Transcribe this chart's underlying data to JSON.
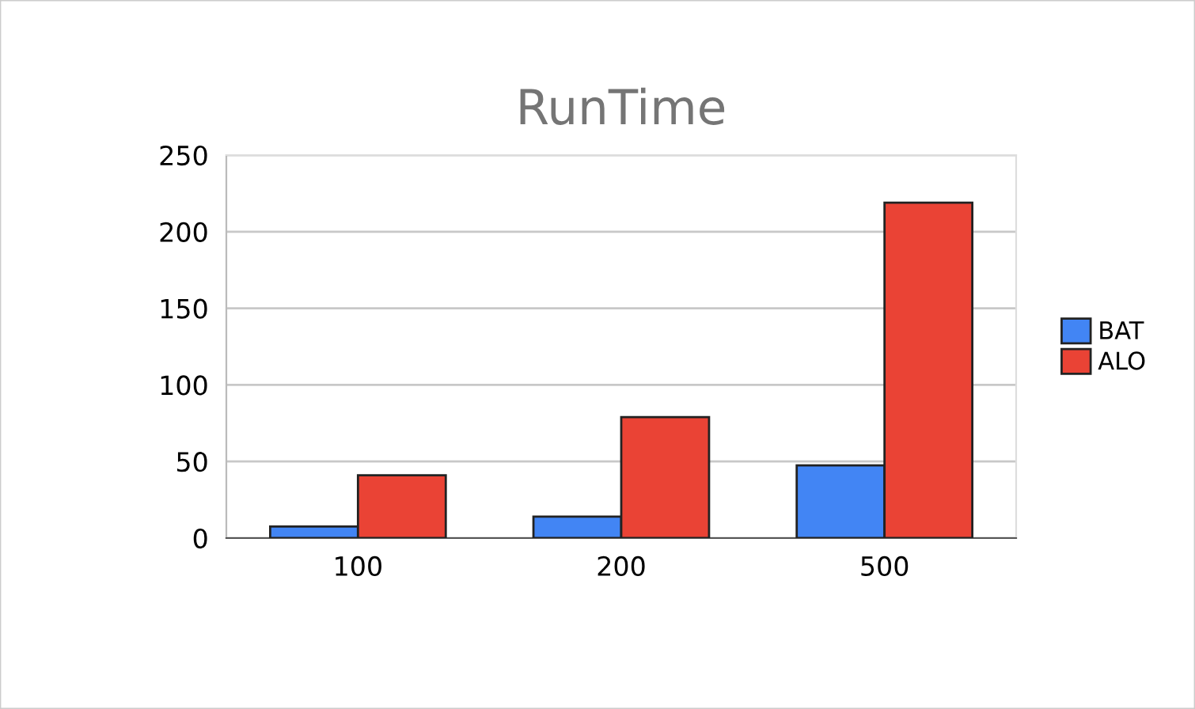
{
  "chart_data": {
    "type": "bar",
    "title": "RunTime",
    "categories": [
      "100",
      "200",
      "500"
    ],
    "series": [
      {
        "name": "BAT",
        "color": "#4285f4",
        "values": [
          7.5,
          14,
          47.5
        ]
      },
      {
        "name": "ALO",
        "color": "#ea4335",
        "values": [
          41,
          79,
          219
        ]
      }
    ],
    "ylim": [
      0,
      250
    ],
    "yticks": [
      0,
      50,
      100,
      150,
      200,
      250
    ],
    "grid": "y",
    "legend": "right"
  }
}
